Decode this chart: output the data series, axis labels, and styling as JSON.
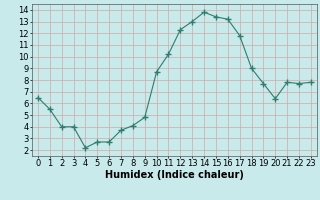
{
  "x": [
    0,
    1,
    2,
    3,
    4,
    5,
    6,
    7,
    8,
    9,
    10,
    11,
    12,
    13,
    14,
    15,
    16,
    17,
    18,
    19,
    20,
    21,
    22,
    23
  ],
  "y": [
    6.5,
    5.5,
    4.0,
    4.0,
    2.2,
    2.7,
    2.7,
    3.7,
    4.1,
    4.8,
    8.7,
    10.2,
    12.3,
    13.0,
    13.8,
    13.4,
    13.2,
    11.8,
    9.0,
    7.7,
    6.4,
    7.8,
    7.7,
    7.8
  ],
  "line_color": "#2e7d6e",
  "marker": "+",
  "marker_size": 4,
  "background_color": "#c8eaea",
  "grid_color": "#d0a8a8",
  "xlabel": "Humidex (Indice chaleur)",
  "xlabel_fontsize": 7,
  "tick_fontsize": 6,
  "xlim": [
    -0.5,
    23.5
  ],
  "ylim": [
    1.5,
    14.5
  ],
  "yticks": [
    2,
    3,
    4,
    5,
    6,
    7,
    8,
    9,
    10,
    11,
    12,
    13,
    14
  ],
  "xticks": [
    0,
    1,
    2,
    3,
    4,
    5,
    6,
    7,
    8,
    9,
    10,
    11,
    12,
    13,
    14,
    15,
    16,
    17,
    18,
    19,
    20,
    21,
    22,
    23
  ],
  "figure_width": 3.2,
  "figure_height": 2.0,
  "dpi": 100
}
